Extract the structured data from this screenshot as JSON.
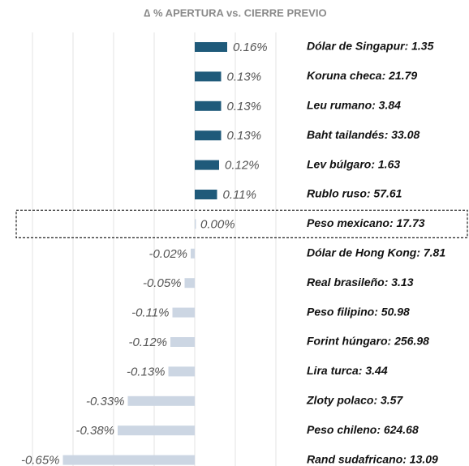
{
  "chart_data": {
    "type": "hbar",
    "title": "∆ % APERTURA vs. CIERRE PREVIO",
    "categories": [
      "Dólar de Singapur: 1.35",
      "Koruna checa: 21.79",
      "Leu rumano: 3.84",
      "Baht tailandés: 33.08",
      "Lev búlgaro: 1.63",
      "Rublo ruso: 57.61",
      "Peso mexicano: 17.73",
      "Dólar de Hong Kong: 7.81",
      "Real brasileño: 3.13",
      "Peso filipino: 50.98",
      "Forint húngaro: 256.98",
      "Lira turca: 3.44",
      "Zloty polaco: 3.57",
      "Peso chileno: 624.68",
      "Rand sudafricano: 13.09"
    ],
    "values": [
      0.16,
      0.13,
      0.13,
      0.13,
      0.12,
      0.11,
      0.0,
      -0.02,
      -0.05,
      -0.11,
      -0.12,
      -0.13,
      -0.33,
      -0.38,
      -0.65
    ],
    "value_labels": [
      "0.16%",
      "0.13%",
      "0.13%",
      "0.13%",
      "0.12%",
      "0.11%",
      "0.00%",
      "-0.02%",
      "-0.05%",
      "-0.11%",
      "-0.12%",
      "-0.13%",
      "-0.33%",
      "-0.38%",
      "-0.65%"
    ],
    "colors": {
      "positive": "#1f5a7a",
      "negative": "#ccd6e3"
    },
    "xlim": [
      -0.8,
      0.4
    ],
    "xticks": [
      -0.8,
      -0.6,
      -0.4,
      -0.2,
      0,
      0.2,
      0.4
    ],
    "grid": true,
    "highlight": 6
  }
}
